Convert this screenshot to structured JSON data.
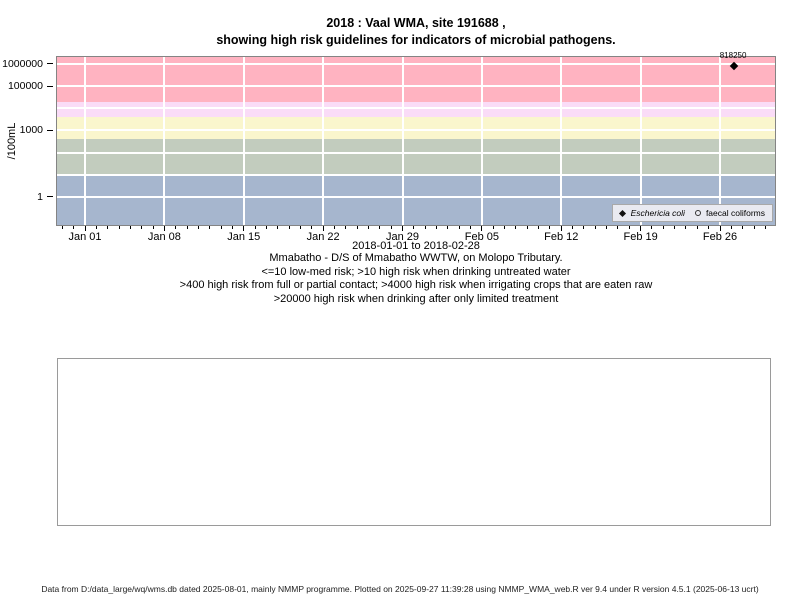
{
  "title": {
    "line1": "2018 : Vaal WMA, site 191688 ,",
    "line2": "showing high risk guidelines for indicators of microbial pathogens."
  },
  "chart_data": {
    "type": "scatter",
    "y_scale": "log10",
    "ylabel": "/100mL",
    "x_range_note": "2018-01-01 to 2018-02-28",
    "x_epoch_date": "2018-01-01",
    "x_range_days": [
      -2.47,
      60.85
    ],
    "y_range_log10": [
      -1.263,
      6.313
    ],
    "grid_color": "#ffffff",
    "x_ticks": [
      {
        "label": "Jan 01",
        "day": 0
      },
      {
        "label": "Jan 08",
        "day": 7
      },
      {
        "label": "Jan 15",
        "day": 14
      },
      {
        "label": "Jan 22",
        "day": 21
      },
      {
        "label": "Jan 29",
        "day": 28
      },
      {
        "label": "Feb 05",
        "day": 35
      },
      {
        "label": "Feb 12",
        "day": 42
      },
      {
        "label": "Feb 19",
        "day": 49
      },
      {
        "label": "Feb 26",
        "day": 56
      }
    ],
    "x_minor_ticks": {
      "from": -2,
      "to": 60,
      "step": 1
    },
    "y_ticks": [
      {
        "label": "1000000",
        "value": 1000000
      },
      {
        "label": "100000",
        "value": 100000
      },
      {
        "label": "1000",
        "value": 1000
      },
      {
        "label": "1",
        "value": 1
      }
    ],
    "y_gridline_values": [
      1,
      10,
      100,
      1000,
      10000,
      100000,
      1000000
    ],
    "bands": [
      {
        "meaning": ">20000 high risk when drinking after only limited treatment",
        "from": 20000,
        "to": null,
        "color": "#ffb3c1"
      },
      {
        "meaning": ">4000 high risk when irrigating crops that are eaten raw",
        "from": 4000,
        "to": 20000,
        "color": "#fadcf7"
      },
      {
        "meaning": ">400 high risk from full or partial contact",
        "from": 400,
        "to": 4000,
        "color": "#faf6cd"
      },
      {
        "meaning": ">10 high risk when drinking untreated water",
        "from": 10,
        "to": 400,
        "color": "#c2ccbe"
      },
      {
        "meaning": "<=10 low-med risk",
        "from": null,
        "to": 10,
        "color": "#a6b6ce"
      }
    ],
    "series": [
      {
        "name": "Eschericia coli",
        "symbol": "filled-diamond",
        "color": "#000000",
        "points": [
          {
            "day": 57.2,
            "value": 818250,
            "label": "818250"
          }
        ]
      },
      {
        "name": "faecal coliforms",
        "symbol": "open-circle",
        "color": "#000000",
        "points": []
      }
    ],
    "legend_position": "bottom-right"
  },
  "legend": {
    "items": [
      {
        "label": "Eschericia coli",
        "symbol": "filled-diamond"
      },
      {
        "label": "faecal coliforms",
        "symbol": "open-circle"
      }
    ]
  },
  "caption": {
    "lines": [
      "Mmabatho - D/S of Mmabatho WWTW, on Molopo Tributary.",
      "<=10 low-med risk; >10 high risk when drinking untreated water",
      ">400 high risk from full or partial contact; >4000 high risk when irrigating crops that are eaten raw",
      ">20000 high risk when drinking after only limited treatment"
    ]
  },
  "footer": {
    "text": "Data from D:/data_large/wq/wms.db dated 2025-08-01, mainly NMMP programme. Plotted on 2025-09-27 11:39:28 using NMMP_WMA_web.R ver 9.4 under R version 4.5.1 (2025-06-13 ucrt)"
  }
}
